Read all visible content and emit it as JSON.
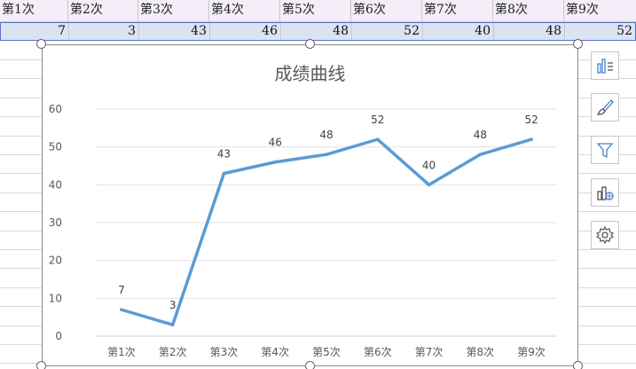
{
  "spreadsheet": {
    "header_row": [
      "第1次",
      "第2次",
      "第3次",
      "第4次",
      "第5次",
      "第6次",
      "第7次",
      "第8次",
      "第9次"
    ],
    "value_row": [
      "7",
      "3",
      "43",
      "46",
      "48",
      "52",
      "40",
      "48",
      "52"
    ]
  },
  "chart_data": {
    "type": "line",
    "title": "成绩曲线",
    "categories": [
      "第1次",
      "第2次",
      "第3次",
      "第4次",
      "第5次",
      "第6次",
      "第7次",
      "第8次",
      "第9次"
    ],
    "values": [
      7,
      3,
      43,
      46,
      48,
      52,
      40,
      48,
      52
    ],
    "ylim": [
      0,
      60
    ],
    "yticks": [
      "0",
      "10",
      "20",
      "30",
      "40",
      "50",
      "60"
    ],
    "grid": true,
    "data_labels": true,
    "line_color": "#5b9bd5"
  },
  "toolbar": {
    "buttons": [
      {
        "icon": "chart-elements-icon"
      },
      {
        "icon": "chart-styles-icon"
      },
      {
        "icon": "chart-filters-icon"
      },
      {
        "icon": "chart-layout-icon"
      },
      {
        "icon": "chart-settings-icon"
      }
    ]
  }
}
